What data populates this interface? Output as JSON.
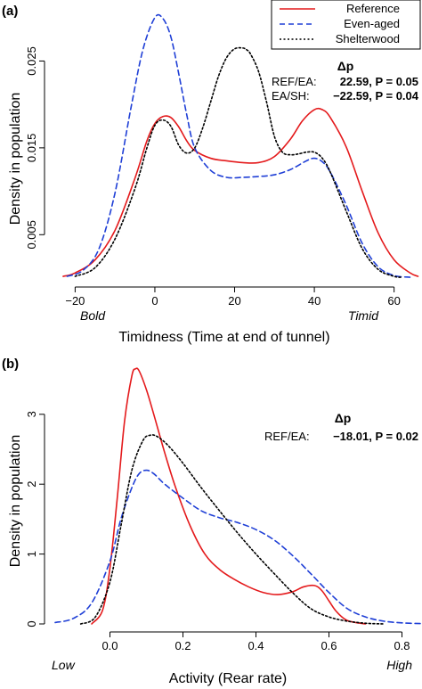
{
  "colors": {
    "reference": "#e41a1c",
    "even_aged": "#1f3fd6",
    "shelterwood": "#000000",
    "axis": "#000000"
  },
  "legend": {
    "items": [
      {
        "label": "Reference",
        "style": "solid",
        "color": "#e41a1c"
      },
      {
        "label": "Even-aged",
        "style": "dashed",
        "color": "#1f3fd6"
      },
      {
        "label": "Shelterwood",
        "style": "dotted",
        "color": "#000000"
      }
    ]
  },
  "chart_data": [
    {
      "type": "line",
      "panel_label": "(a)",
      "xlabel": "Timidness (Time at end of tunnel)",
      "ylabel": "Density in population",
      "x_anchor_left": "Bold",
      "x_anchor_right": "Timid",
      "xlim": [
        -25,
        67
      ],
      "ylim": [
        0,
        0.031
      ],
      "xticks": [
        -20,
        0,
        20,
        40,
        60
      ],
      "xtick_labels": [
        "−20",
        "0",
        "20",
        "40",
        "60"
      ],
      "yticks": [
        0.005,
        0.015,
        0.025
      ],
      "ytick_labels": [
        "0.005",
        "0.015",
        "0.025"
      ],
      "stats_header": "Δp",
      "stats": [
        {
          "label": "REF/EA:",
          "value": "22.59, P = 0.05"
        },
        {
          "label": "EA/SH:",
          "value": "−22.59, P = 0.04"
        }
      ],
      "series": [
        {
          "name": "Reference",
          "style": "solid",
          "x": [
            -23,
            -20,
            -15,
            -10,
            -5,
            -2,
            0,
            2,
            4,
            6,
            8,
            10,
            14,
            18,
            22,
            26,
            30,
            34,
            37,
            40,
            42,
            44,
            48,
            52,
            56,
            60,
            64,
            66
          ],
          "y": [
            0.0002,
            0.0006,
            0.0021,
            0.0055,
            0.0115,
            0.0158,
            0.0178,
            0.0186,
            0.0185,
            0.0174,
            0.0158,
            0.0147,
            0.0138,
            0.0135,
            0.0133,
            0.0133,
            0.014,
            0.016,
            0.0181,
            0.0194,
            0.0194,
            0.0185,
            0.0151,
            0.01,
            0.0052,
            0.0021,
            0.0006,
            0.0002
          ]
        },
        {
          "name": "Even-aged",
          "style": "dashed",
          "x": [
            -22,
            -18,
            -14,
            -10,
            -6,
            -3,
            0,
            2,
            4,
            6,
            8,
            10,
            14,
            18,
            22,
            26,
            30,
            34,
            38,
            40,
            42,
            44,
            48,
            52,
            56,
            60,
            64
          ],
          "y": [
            0.0002,
            0.0009,
            0.0034,
            0.0098,
            0.0196,
            0.0263,
            0.03,
            0.0299,
            0.0278,
            0.0235,
            0.0188,
            0.015,
            0.0124,
            0.0116,
            0.0116,
            0.0117,
            0.0119,
            0.0125,
            0.0135,
            0.0138,
            0.0134,
            0.0122,
            0.0084,
            0.004,
            0.0013,
            0.0003,
            0.0001
          ]
        },
        {
          "name": "Shelterwood",
          "style": "dotted",
          "x": [
            -20,
            -15,
            -10,
            -5,
            -2,
            0,
            2,
            4,
            6,
            8,
            10,
            12,
            14,
            16,
            18,
            20,
            22,
            23,
            24,
            26,
            28,
            30,
            32,
            34,
            36,
            38,
            40,
            42,
            44,
            48,
            52,
            56,
            60,
            62
          ],
          "y": [
            0.0002,
            0.0012,
            0.0045,
            0.0103,
            0.015,
            0.0176,
            0.0182,
            0.0175,
            0.0153,
            0.0144,
            0.015,
            0.0173,
            0.0203,
            0.0233,
            0.0254,
            0.0264,
            0.0265,
            0.0263,
            0.0258,
            0.0238,
            0.0203,
            0.0163,
            0.0145,
            0.0142,
            0.0143,
            0.0145,
            0.0145,
            0.0138,
            0.0122,
            0.0077,
            0.0034,
            0.001,
            0.0002,
            0.0001
          ]
        }
      ]
    },
    {
      "type": "line",
      "panel_label": "(b)",
      "xlabel": "Activity (Rear rate)",
      "ylabel": "Density in population",
      "x_anchor_left": "Low",
      "x_anchor_right": "High",
      "xlim": [
        -0.15,
        0.85
      ],
      "ylim": [
        0,
        3.75
      ],
      "xticks": [
        0.0,
        0.2,
        0.4,
        0.6,
        0.8
      ],
      "xtick_labels": [
        "0.0",
        "0.2",
        "0.4",
        "0.6",
        "0.8"
      ],
      "yticks": [
        0,
        1,
        2,
        3
      ],
      "ytick_labels": [
        "0",
        "1",
        "2",
        "3"
      ],
      "stats_header": "Δp",
      "stats": [
        {
          "label": "REF/EA:",
          "value": "−18.01, P = 0.02"
        }
      ],
      "series": [
        {
          "name": "Reference",
          "style": "solid",
          "x": [
            -0.05,
            -0.02,
            0.0,
            0.02,
            0.04,
            0.06,
            0.07,
            0.08,
            0.1,
            0.12,
            0.15,
            0.18,
            0.22,
            0.26,
            0.3,
            0.34,
            0.38,
            0.42,
            0.46,
            0.5,
            0.53,
            0.56,
            0.58,
            0.6,
            0.62,
            0.65,
            0.7
          ],
          "y": [
            0.0,
            0.2,
            0.8,
            1.8,
            2.9,
            3.55,
            3.65,
            3.62,
            3.35,
            3.0,
            2.45,
            1.95,
            1.4,
            1.0,
            0.78,
            0.64,
            0.53,
            0.45,
            0.42,
            0.46,
            0.53,
            0.55,
            0.48,
            0.33,
            0.18,
            0.05,
            0.0
          ]
        },
        {
          "name": "Even-aged",
          "style": "dashed",
          "x": [
            -0.15,
            -0.1,
            -0.05,
            0.0,
            0.03,
            0.06,
            0.08,
            0.1,
            0.12,
            0.15,
            0.2,
            0.25,
            0.3,
            0.35,
            0.4,
            0.45,
            0.5,
            0.55,
            0.6,
            0.65,
            0.7,
            0.75,
            0.8,
            0.85
          ],
          "y": [
            0.02,
            0.08,
            0.3,
            0.9,
            1.5,
            1.95,
            2.15,
            2.2,
            2.15,
            2.0,
            1.8,
            1.62,
            1.52,
            1.45,
            1.35,
            1.2,
            0.98,
            0.72,
            0.45,
            0.22,
            0.1,
            0.04,
            0.015,
            0.005
          ]
        },
        {
          "name": "Shelterwood",
          "style": "dotted",
          "x": [
            -0.08,
            -0.04,
            0.0,
            0.03,
            0.06,
            0.09,
            0.11,
            0.13,
            0.16,
            0.2,
            0.25,
            0.3,
            0.35,
            0.4,
            0.45,
            0.5,
            0.55,
            0.6,
            0.65,
            0.7,
            0.75
          ],
          "y": [
            0.0,
            0.1,
            0.6,
            1.4,
            2.2,
            2.62,
            2.7,
            2.68,
            2.55,
            2.3,
            1.95,
            1.62,
            1.3,
            1.0,
            0.72,
            0.45,
            0.22,
            0.1,
            0.04,
            0.01,
            0.0
          ]
        }
      ]
    }
  ]
}
